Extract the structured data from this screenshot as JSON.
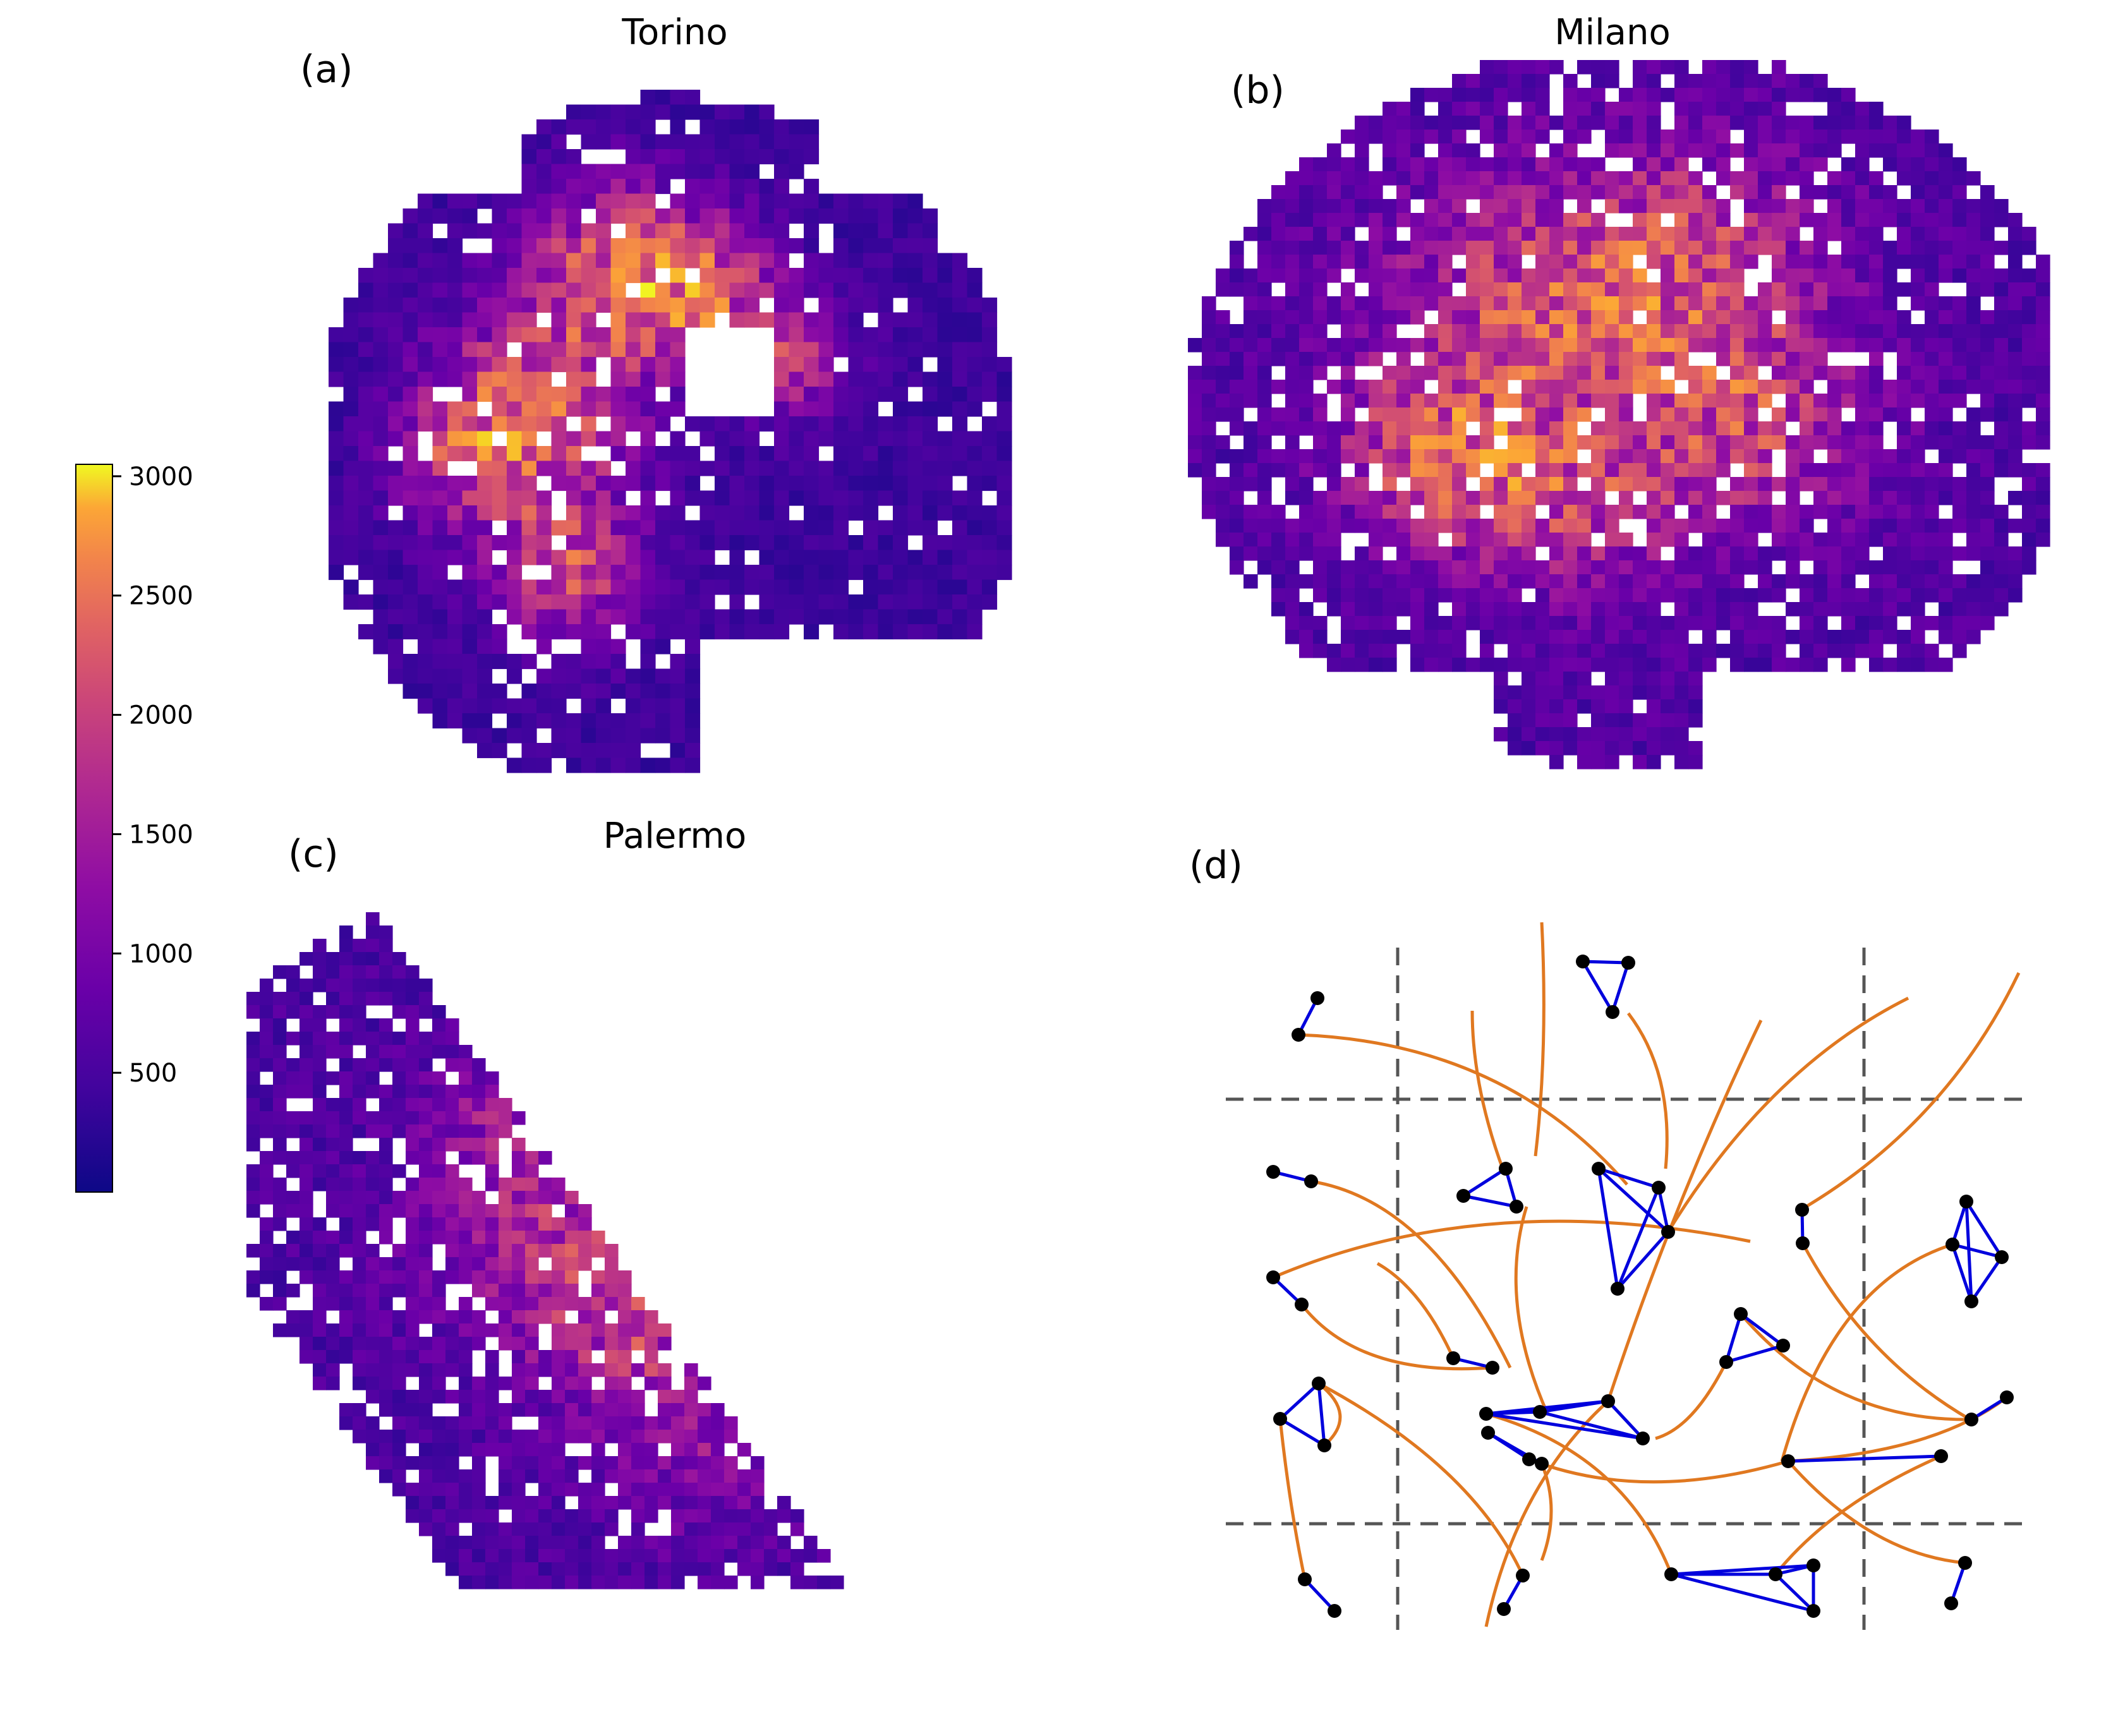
{
  "chart_data": [
    {
      "type": "heatmap",
      "panel": "(a)",
      "title": "Torino",
      "colormap": "plasma",
      "description_values_range": [
        0,
        3050
      ],
      "hotspots": [
        {
          "value": 2600
        },
        {
          "value": 2500
        },
        {
          "value": 2450
        },
        {
          "value": 2400
        },
        {
          "value": 2350
        },
        {
          "value": 2300
        },
        {
          "value": 2200
        },
        {
          "value": 3050
        }
      ]
    },
    {
      "type": "heatmap",
      "panel": "(b)",
      "title": "Milano",
      "colormap": "plasma",
      "hotspots": [
        {
          "value": 2700
        },
        {
          "value": 2300
        },
        {
          "value": 2200
        },
        {
          "value": 2100
        },
        {
          "value": 2000
        }
      ]
    },
    {
      "type": "heatmap",
      "panel": "(c)",
      "title": "Palermo",
      "colormap": "plasma",
      "hotspots": [
        {
          "value": 2100
        },
        {
          "value": 1800
        },
        {
          "value": 1700
        },
        {
          "value": 1600
        }
      ]
    },
    {
      "type": "diagram",
      "panel": "(d)",
      "title": "",
      "description": "network of clustered nodes over a dashed grid",
      "colors": {
        "node": "#000000",
        "intra_link": "#0000dd",
        "inter_link": "#e07820",
        "grid": "#555555"
      }
    }
  ],
  "colorbar": {
    "colormap": "plasma",
    "range": [
      0,
      3050
    ],
    "ticks": [
      500,
      1000,
      1500,
      2000,
      2500,
      3000
    ]
  },
  "panels": {
    "a": {
      "letter": "(a)",
      "title": "Torino"
    },
    "b": {
      "letter": "(b)",
      "title": "Milano"
    },
    "c": {
      "letter": "(c)",
      "title": "Palermo"
    },
    "d": {
      "letter": "(d)"
    }
  }
}
